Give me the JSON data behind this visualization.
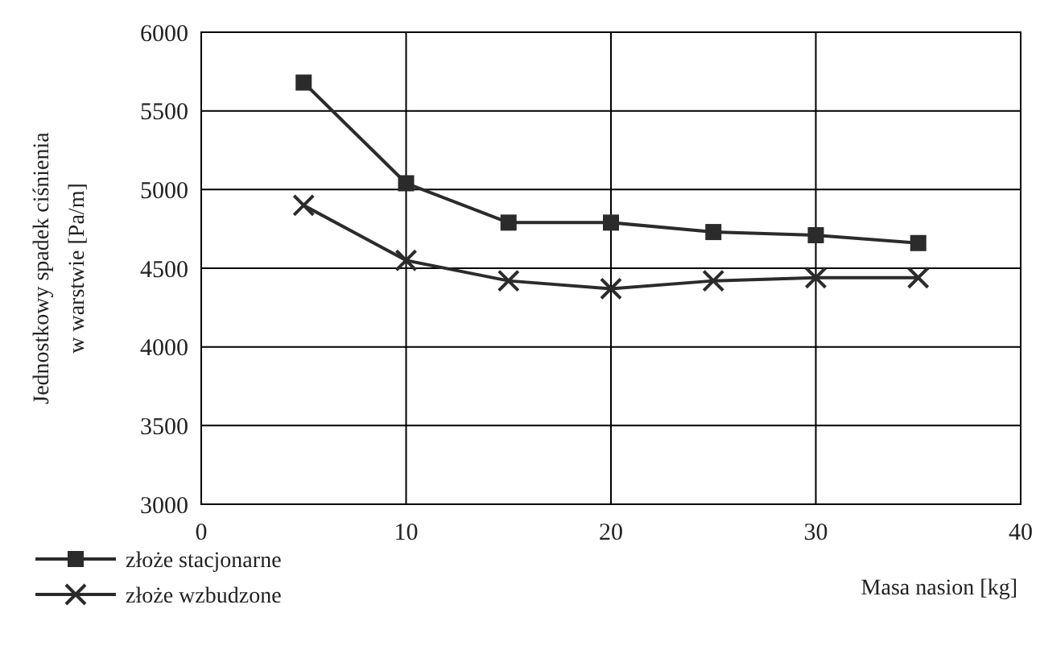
{
  "chart_data": {
    "type": "line",
    "xlabel": "Masa nasion [kg]",
    "ylabel": "Jednostkowy spadek ciśnienia\nw warstwie  [Pa/m]",
    "x": [
      5,
      10,
      15,
      20,
      25,
      30,
      35
    ],
    "series": [
      {
        "name": "złoże stacjonarne",
        "color": "#2b2b2b",
        "marker": "square",
        "values": [
          5680,
          5040,
          4790,
          4790,
          4730,
          4710,
          4660
        ]
      },
      {
        "name": "złoże wzbudzone",
        "color": "#2b2b2b",
        "marker": "cross",
        "values": [
          4900,
          4550,
          4420,
          4370,
          4420,
          4440,
          4440
        ]
      }
    ],
    "xlim": [
      0,
      40
    ],
    "xticks": [
      0,
      10,
      20,
      30,
      40
    ],
    "ylim": [
      3000,
      6000
    ],
    "yticks": [
      3000,
      3500,
      4000,
      4500,
      5000,
      5500,
      6000
    ],
    "grid": true,
    "legend": "bottom left",
    "line_style": "solid"
  }
}
